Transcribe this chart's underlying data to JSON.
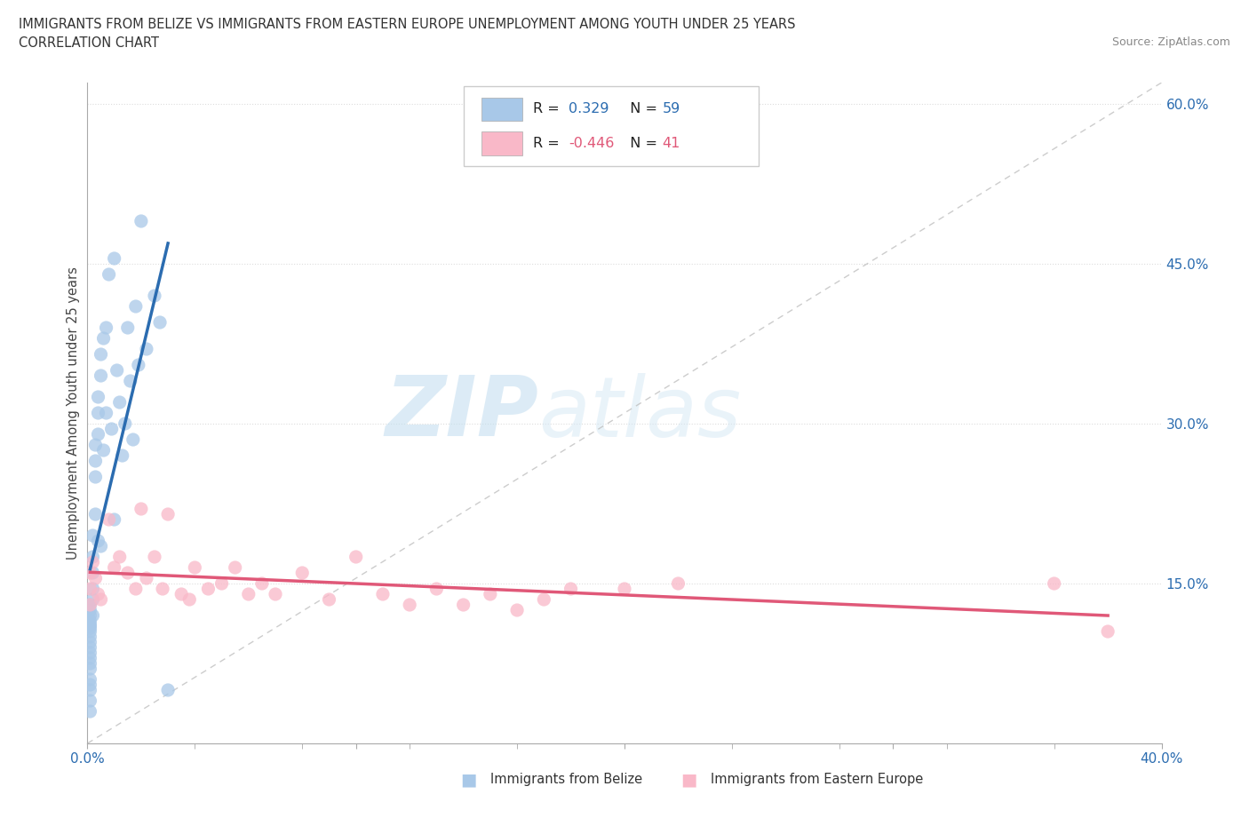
{
  "title_line1": "IMMIGRANTS FROM BELIZE VS IMMIGRANTS FROM EASTERN EUROPE UNEMPLOYMENT AMONG YOUTH UNDER 25 YEARS",
  "title_line2": "CORRELATION CHART",
  "source_text": "Source: ZipAtlas.com",
  "ylabel": "Unemployment Among Youth under 25 years",
  "watermark_zip": "ZIP",
  "watermark_atlas": "atlas",
  "belize_color": "#a8c8e8",
  "belize_line_color": "#2b6cb0",
  "eastern_color": "#f9b8c8",
  "eastern_line_color": "#e05878",
  "belize_R": 0.329,
  "belize_N": 59,
  "eastern_R": -0.446,
  "eastern_N": 41,
  "xlim": [
    0.0,
    0.4
  ],
  "ylim": [
    0.0,
    0.62
  ],
  "belize_x": [
    0.001,
    0.001,
    0.001,
    0.001,
    0.001,
    0.001,
    0.001,
    0.001,
    0.001,
    0.001,
    0.001,
    0.001,
    0.001,
    0.001,
    0.001,
    0.001,
    0.001,
    0.001,
    0.001,
    0.001,
    0.002,
    0.002,
    0.002,
    0.002,
    0.002,
    0.002,
    0.003,
    0.003,
    0.003,
    0.003,
    0.004,
    0.004,
    0.004,
    0.004,
    0.005,
    0.005,
    0.005,
    0.006,
    0.006,
    0.007,
    0.007,
    0.008,
    0.009,
    0.01,
    0.01,
    0.011,
    0.012,
    0.013,
    0.014,
    0.015,
    0.016,
    0.017,
    0.018,
    0.019,
    0.02,
    0.022,
    0.025,
    0.027,
    0.03
  ],
  "belize_y": [
    0.13,
    0.125,
    0.12,
    0.115,
    0.112,
    0.11,
    0.108,
    0.105,
    0.1,
    0.095,
    0.09,
    0.085,
    0.08,
    0.075,
    0.07,
    0.06,
    0.055,
    0.05,
    0.04,
    0.03,
    0.195,
    0.175,
    0.16,
    0.145,
    0.135,
    0.12,
    0.28,
    0.265,
    0.25,
    0.215,
    0.325,
    0.31,
    0.29,
    0.19,
    0.365,
    0.345,
    0.185,
    0.38,
    0.275,
    0.39,
    0.31,
    0.44,
    0.295,
    0.455,
    0.21,
    0.35,
    0.32,
    0.27,
    0.3,
    0.39,
    0.34,
    0.285,
    0.41,
    0.355,
    0.49,
    0.37,
    0.42,
    0.395,
    0.05
  ],
  "eastern_x": [
    0.001,
    0.001,
    0.001,
    0.002,
    0.003,
    0.004,
    0.005,
    0.008,
    0.01,
    0.012,
    0.015,
    0.018,
    0.02,
    0.022,
    0.025,
    0.028,
    0.03,
    0.035,
    0.038,
    0.04,
    0.045,
    0.05,
    0.055,
    0.06,
    0.065,
    0.07,
    0.08,
    0.09,
    0.1,
    0.11,
    0.12,
    0.13,
    0.14,
    0.15,
    0.16,
    0.17,
    0.18,
    0.2,
    0.22,
    0.36,
    0.38
  ],
  "eastern_y": [
    0.16,
    0.145,
    0.13,
    0.17,
    0.155,
    0.14,
    0.135,
    0.21,
    0.165,
    0.175,
    0.16,
    0.145,
    0.22,
    0.155,
    0.175,
    0.145,
    0.215,
    0.14,
    0.135,
    0.165,
    0.145,
    0.15,
    0.165,
    0.14,
    0.15,
    0.14,
    0.16,
    0.135,
    0.175,
    0.14,
    0.13,
    0.145,
    0.13,
    0.14,
    0.125,
    0.135,
    0.145,
    0.145,
    0.15,
    0.15,
    0.105
  ]
}
